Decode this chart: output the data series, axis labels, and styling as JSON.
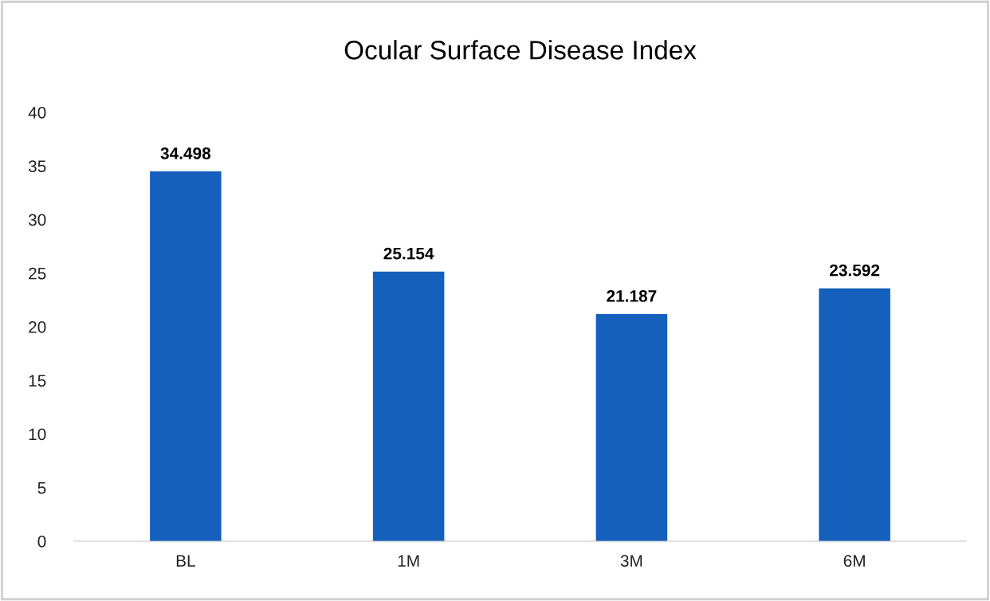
{
  "chart_data": {
    "type": "bar",
    "title": "Ocular Surface Disease Index",
    "categories": [
      "BL",
      "1M",
      "3M",
      "6M"
    ],
    "values": [
      34.498,
      25.154,
      21.187,
      23.592
    ],
    "color": "#1560bd",
    "ylim": [
      0,
      40
    ],
    "yticks": [
      0,
      5,
      10,
      15,
      20,
      25,
      30,
      35,
      40
    ],
    "data_labels": true
  }
}
